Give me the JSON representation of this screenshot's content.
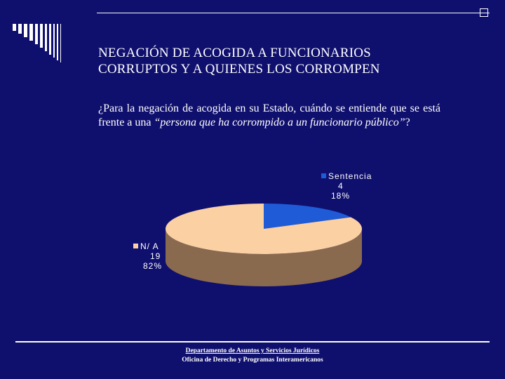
{
  "slide": {
    "title_line1": "NEGACIÓN DE ACOGIDA A FUNCIONARIOS",
    "title_line2": "CORRUPTOS Y A QUIENES LOS CORROMPEN",
    "question_plain": "¿Para la negación de acogida en su Estado, cuándo se entiende que se está frente a una ",
    "question_italic": "“persona que ha corrompido a un funcionario público”",
    "question_end": "?",
    "footer_line1": "Departamento de Asuntos y Servicios Jurídicos",
    "footer_line2": "Oficina de Derecho y Programas Interamericanos"
  },
  "colors": {
    "background": "#0f0f6e",
    "text": "#ffffff",
    "slice_sentencia": "#1f5bd6",
    "slice_sentencia_side": "#143d96",
    "slice_na": "#fbd0a3",
    "slice_na_side": "#8a6a4f"
  },
  "chart_data": {
    "type": "pie",
    "style": "3d",
    "series": [
      {
        "name": "Sentencia",
        "value": 4,
        "percent": "18%",
        "color": "#1f5bd6"
      },
      {
        "name": "N/ A",
        "value": 19,
        "percent": "82%",
        "color": "#fbd0a3"
      }
    ],
    "labels": [
      {
        "name": "Sentencia",
        "count": "4",
        "percent": "18%"
      },
      {
        "name": "N/ A",
        "count": "19",
        "percent": "82%"
      }
    ]
  }
}
